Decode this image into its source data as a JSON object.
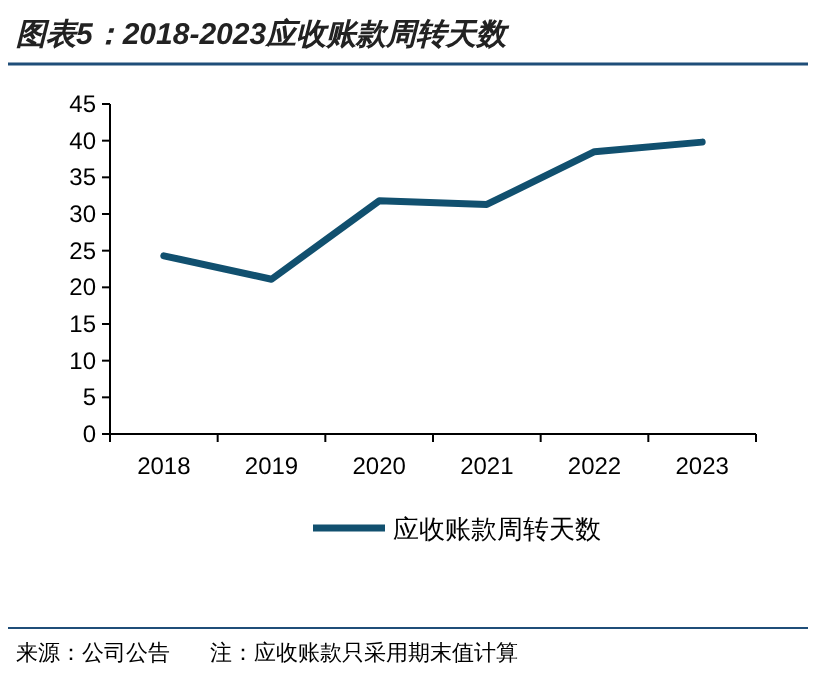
{
  "chart_data": {
    "type": "line",
    "title": "图表5：2018-2023应收账款周转天数",
    "categories": [
      "2018",
      "2019",
      "2020",
      "2021",
      "2022",
      "2023"
    ],
    "series": [
      {
        "name": "应收账款周转天数",
        "color": "#11506f",
        "values": [
          24.3,
          21.1,
          31.8,
          31.3,
          38.5,
          39.8
        ]
      }
    ],
    "ylim": [
      0,
      45
    ],
    "yticks": [
      0,
      5,
      10,
      15,
      20,
      25,
      30,
      35,
      40,
      45
    ],
    "grid": false,
    "legend": "bottom",
    "marker": "none",
    "line_style": "solid",
    "annotations": [
      "来源：公司公告",
      "注：应收账款只采用期末值计算"
    ]
  }
}
